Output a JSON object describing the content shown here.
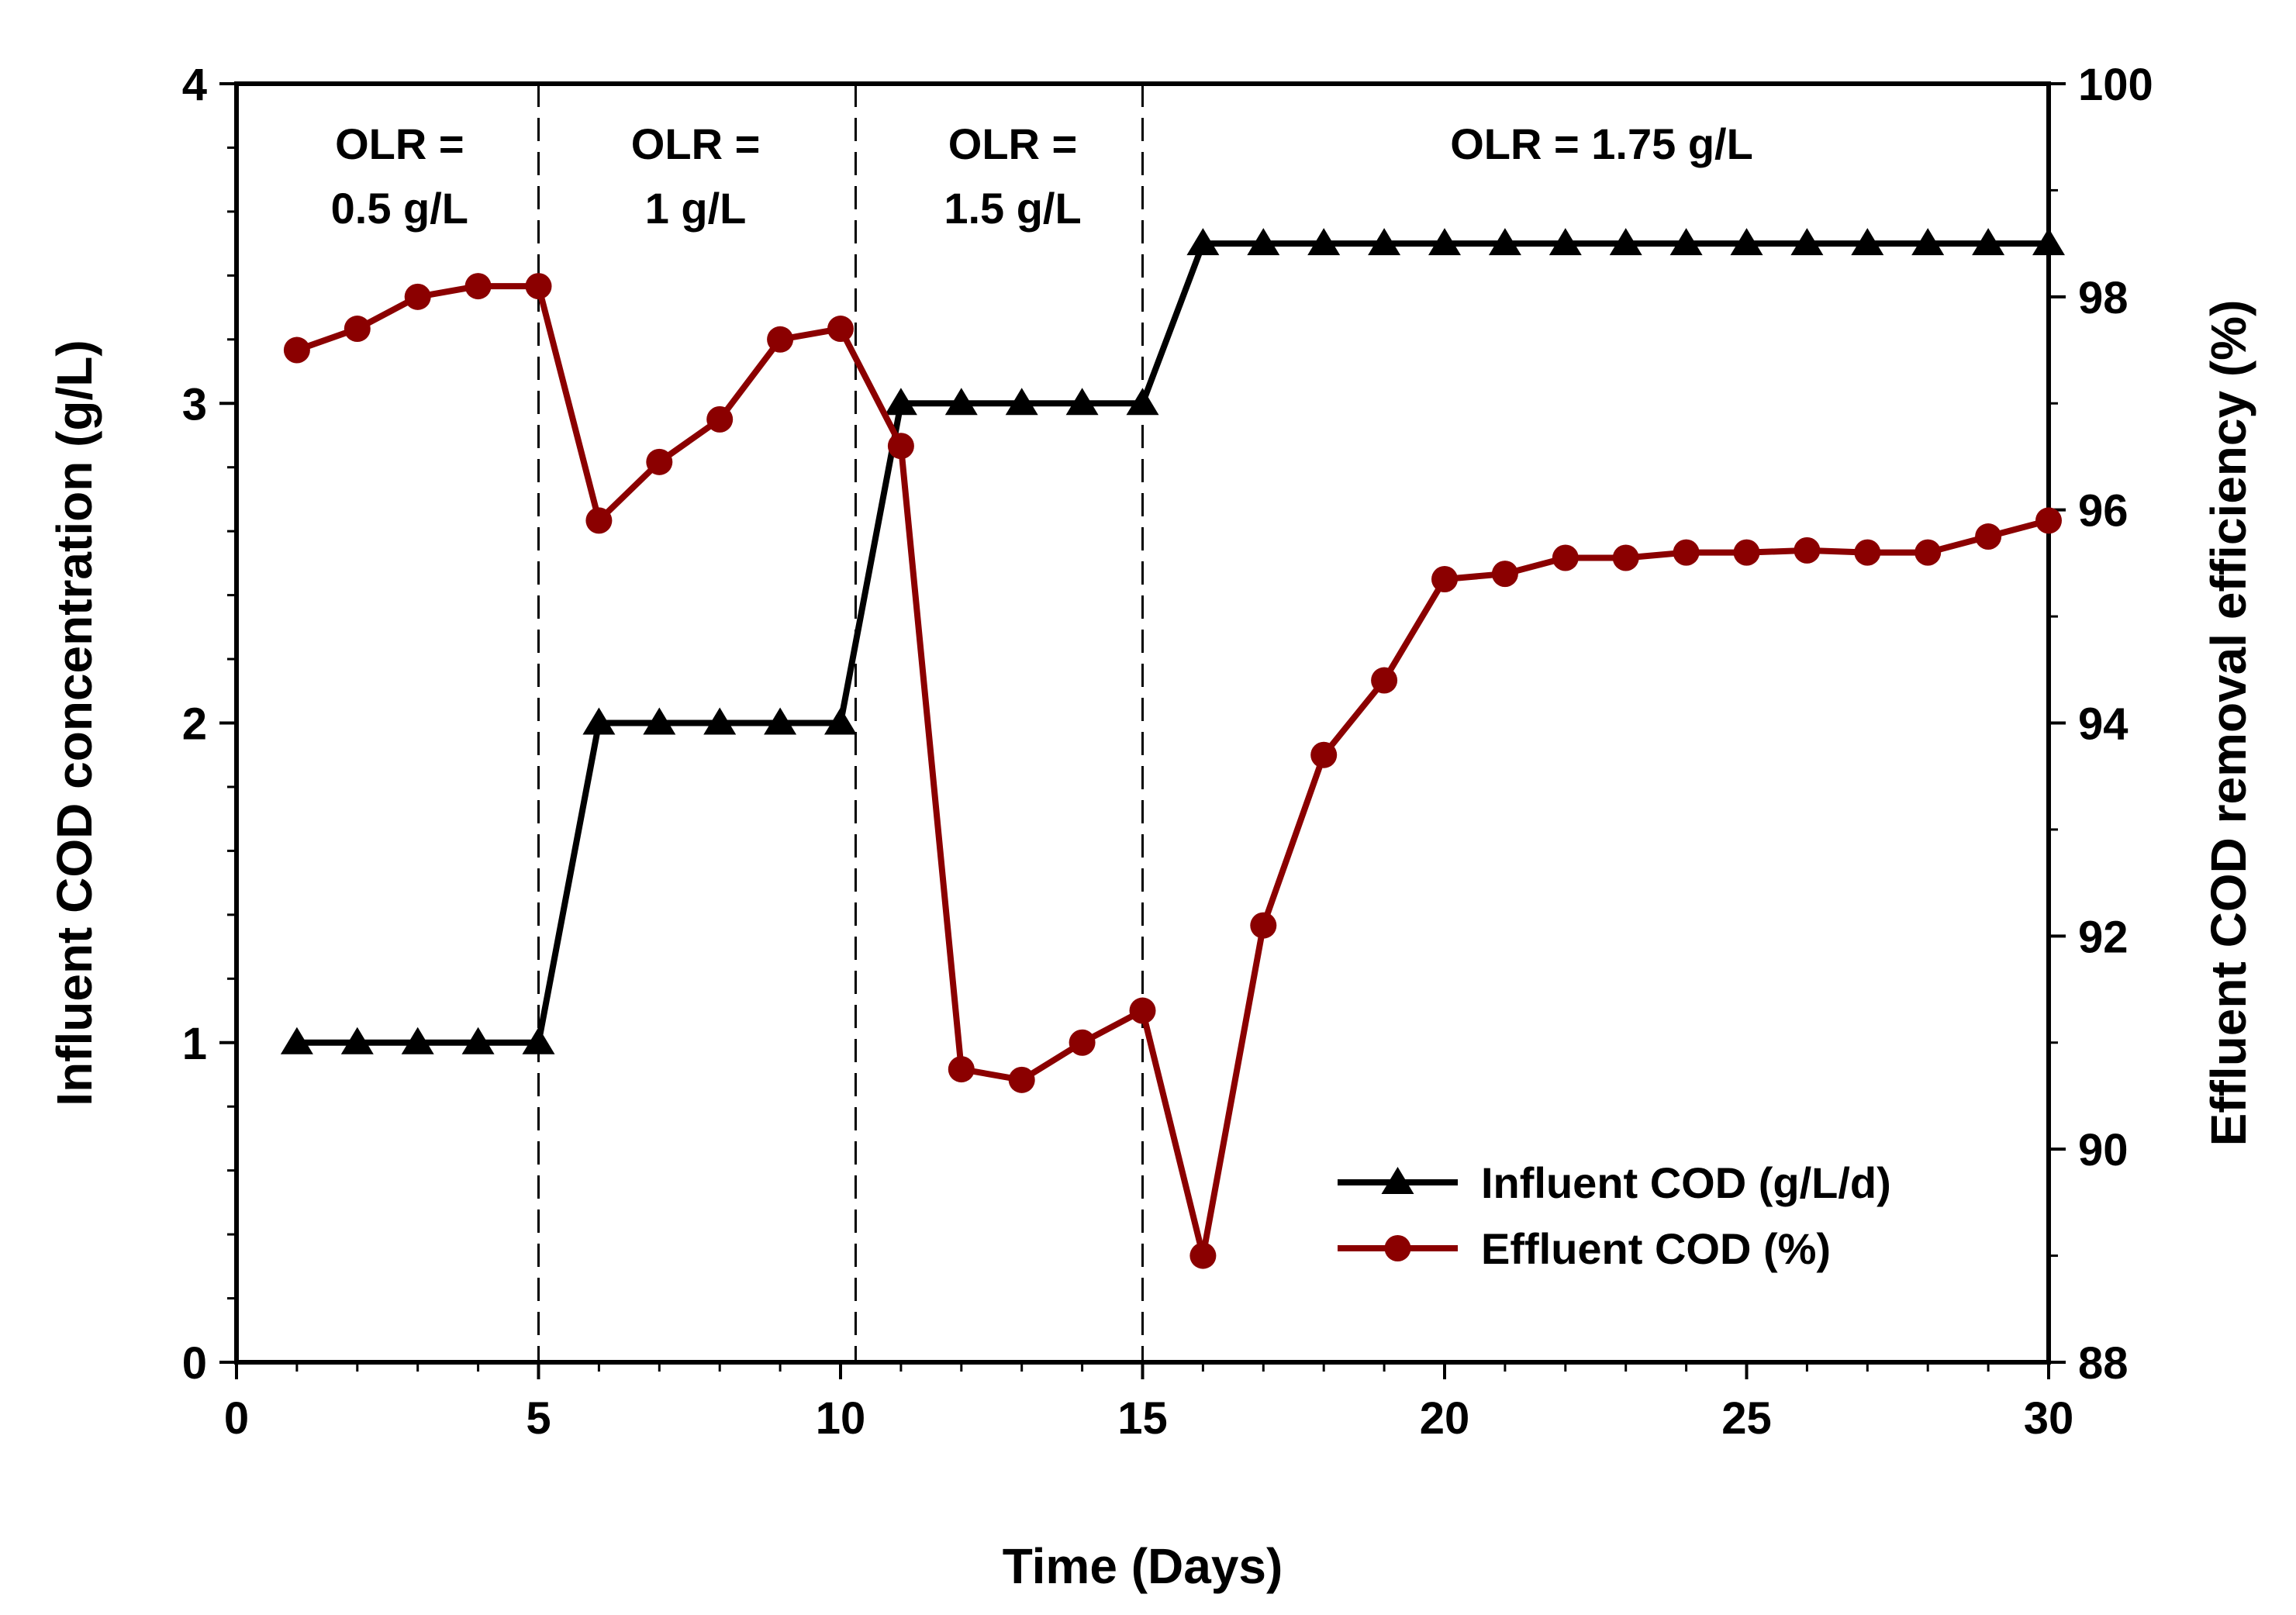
{
  "chart_data": {
    "type": "line",
    "title": "",
    "xlabel": "Time (Days)",
    "ylabel": "Influent COD concentration (g/L)",
    "y2label": "Effluent COD removal efficiency (%)",
    "xlim": [
      0,
      30
    ],
    "ylim": [
      0,
      4
    ],
    "y2lim": [
      88,
      100
    ],
    "xticks": [
      0,
      5,
      10,
      15,
      20,
      25,
      30
    ],
    "yticks": [
      0,
      1,
      2,
      3,
      4
    ],
    "y2ticks": [
      88,
      90,
      92,
      94,
      96,
      98,
      100
    ],
    "grid": false,
    "legend_position": "bottom-right",
    "series": [
      {
        "name": "Influent COD (g/L/d)",
        "axis": "left",
        "marker": "triangle",
        "color": "#000000",
        "x": [
          1,
          2,
          3,
          4,
          5,
          6,
          7,
          8,
          9,
          10,
          11,
          12,
          13,
          14,
          15,
          16,
          17,
          18,
          19,
          20,
          21,
          22,
          23,
          24,
          25,
          26,
          27,
          28,
          29,
          30
        ],
        "y": [
          1,
          1,
          1,
          1,
          1,
          2,
          2,
          2,
          2,
          2,
          3,
          3,
          3,
          3,
          3,
          3.5,
          3.5,
          3.5,
          3.5,
          3.5,
          3.5,
          3.5,
          3.5,
          3.5,
          3.5,
          3.5,
          3.5,
          3.5,
          3.5,
          3.5
        ]
      },
      {
        "name": "Effluent COD (%)",
        "axis": "right",
        "marker": "circle",
        "color": "#8B0000",
        "x": [
          1,
          2,
          3,
          4,
          5,
          6,
          7,
          8,
          9,
          10,
          11,
          12,
          13,
          14,
          15,
          16,
          17,
          18,
          19,
          20,
          21,
          22,
          23,
          24,
          25,
          26,
          27,
          28,
          29,
          30
        ],
        "y": [
          97.5,
          97.7,
          98.0,
          98.1,
          98.1,
          95.9,
          96.45,
          96.85,
          97.6,
          97.7,
          96.6,
          90.75,
          90.65,
          91.0,
          91.3,
          89.0,
          92.1,
          93.7,
          94.4,
          95.35,
          95.4,
          95.55,
          95.55,
          95.6,
          95.6,
          95.62,
          95.6,
          95.6,
          95.75,
          95.9
        ]
      }
    ],
    "phase_dividers": [
      5,
      10.25,
      15
    ],
    "phases": [
      {
        "line1": "OLR =",
        "line2": "0.5 g/L",
        "x_center": 2.7
      },
      {
        "line1": "OLR =",
        "line2": "1 g/L",
        "x_center": 7.6
      },
      {
        "line1": "OLR =",
        "line2": "1.5 g/L",
        "x_center": 12.85
      },
      {
        "line1": "OLR = 1.75 g/L",
        "line2": "",
        "x_center": 22.6
      }
    ]
  }
}
